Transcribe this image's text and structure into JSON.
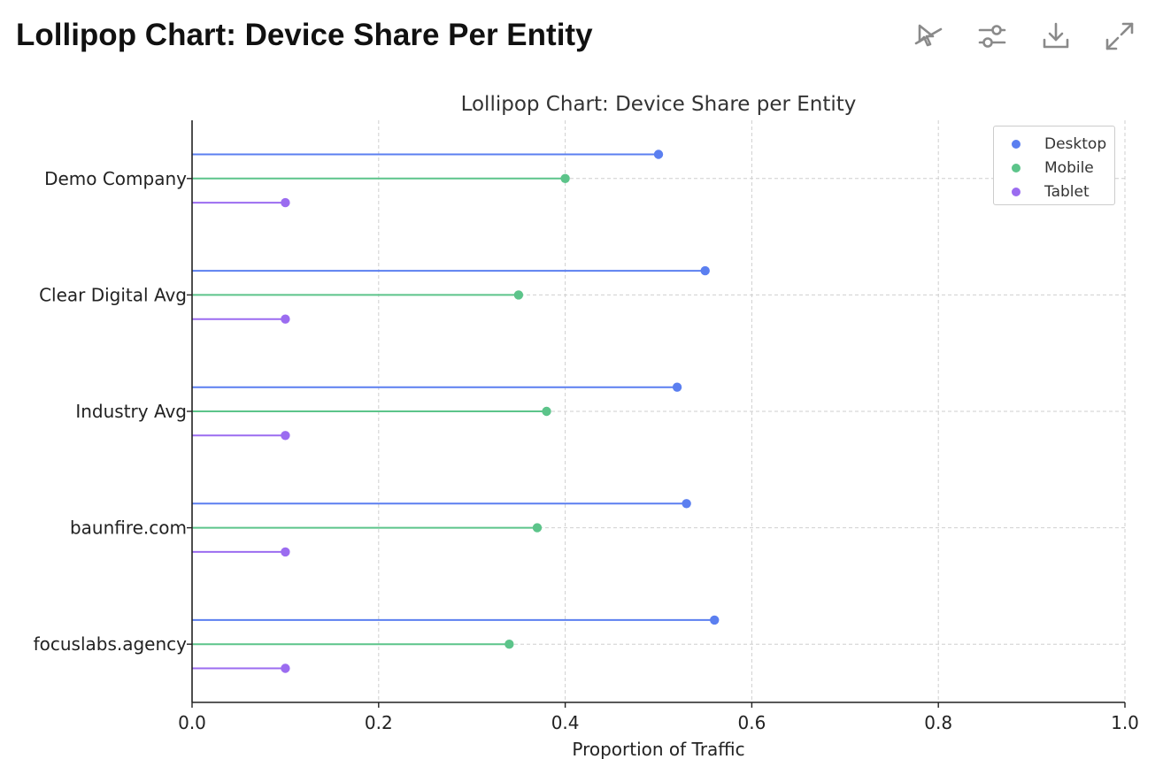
{
  "header": {
    "title": "Lollipop Chart: Device Share Per Entity",
    "toolbar": [
      {
        "name": "disable-interactive-button",
        "icon": "cursor-off-icon"
      },
      {
        "name": "chart-settings-button",
        "icon": "sliders-icon"
      },
      {
        "name": "download-button",
        "icon": "download-icon"
      },
      {
        "name": "expand-button",
        "icon": "expand-icon"
      }
    ]
  },
  "colors": {
    "Desktop": "#5b7ff0",
    "Mobile": "#5cc48a",
    "Tablet": "#9b6cf0",
    "axis": "#222222",
    "grid": "#cfcfcf",
    "text": "#222222"
  },
  "chart_data": {
    "type": "lollipop",
    "orientation": "horizontal",
    "title": "Lollipop Chart: Device Share per Entity",
    "xlabel": "Proportion of Traffic",
    "ylabel": "",
    "xlim": [
      0.0,
      1.0
    ],
    "xticks": [
      "0.0",
      "0.2",
      "0.4",
      "0.6",
      "0.8",
      "1.0"
    ],
    "grid": true,
    "legend_position": "top-right",
    "categories": [
      "Demo Company",
      "Clear Digital Avg",
      "Industry Avg",
      "baunfire.com",
      "focuslabs.agency"
    ],
    "series": [
      {
        "name": "Desktop",
        "values": [
          0.5,
          0.55,
          0.52,
          0.53,
          0.56
        ]
      },
      {
        "name": "Mobile",
        "values": [
          0.4,
          0.35,
          0.38,
          0.37,
          0.34
        ]
      },
      {
        "name": "Tablet",
        "values": [
          0.1,
          0.1,
          0.1,
          0.1,
          0.1
        ]
      }
    ]
  }
}
